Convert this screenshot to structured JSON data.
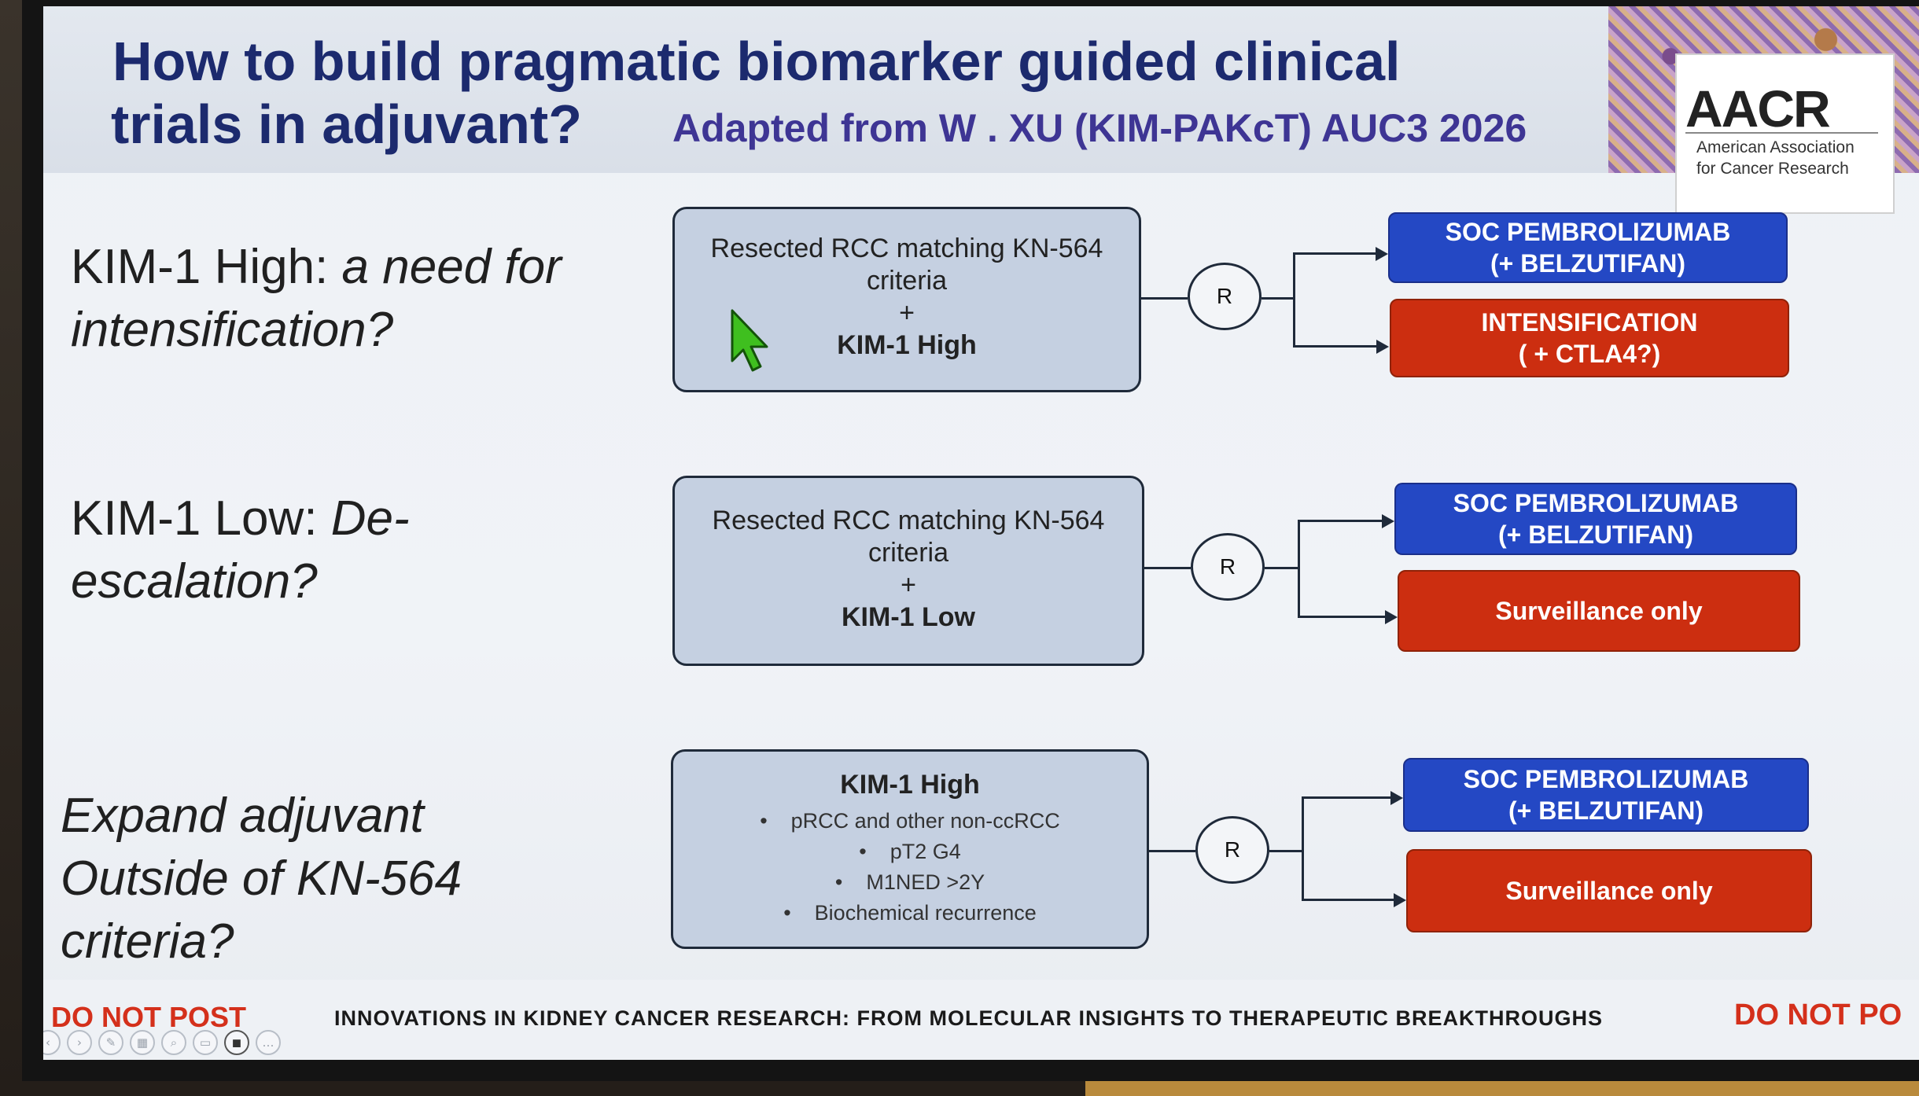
{
  "header": {
    "title_line1": "How to build pragmatic biomarker guided clinical",
    "title_line2": "trials in adjuvant?",
    "subtitle": "Adapted from W . XU (KIM-PAKcT) AUC3 2026"
  },
  "logo": {
    "text": "AACR",
    "line1": "American Association",
    "line2": "for Cancer Research"
  },
  "rows": [
    {
      "question_line1": "KIM-1 High: ",
      "question_line1_italic": "a need for",
      "question_line2": "intensification?",
      "box_line1": "Resected RCC matching KN-564",
      "box_line2": "criteria",
      "box_plus": "+",
      "box_bold": "KIM-1 High",
      "randomize": "R",
      "arm_top_line1": "SOC PEMBROLIZUMAB",
      "arm_top_line2": "(+ BELZUTIFAN)",
      "arm_bottom_line1": "INTENSIFICATION",
      "arm_bottom_line2": "( + CTLA4?)"
    },
    {
      "question_line1": "KIM-1 Low: ",
      "question_line1_italic": "De-",
      "question_line2": "escalation?",
      "box_line1": "Resected RCC matching KN-564",
      "box_line2": "criteria",
      "box_plus": "+",
      "box_bold": "KIM-1 Low",
      "randomize": "R",
      "arm_top_line1": "SOC PEMBROLIZUMAB",
      "arm_top_line2": "(+ BELZUTIFAN)",
      "arm_bottom": "Surveillance only"
    },
    {
      "question_line1": "Expand adjuvant",
      "question_line2": "Outside of KN-564",
      "question_line3": "criteria?",
      "box_bold": "KIM-1 High",
      "bullets": [
        "pRCC and other non-ccRCC",
        "pT2 G4",
        "M1NED >2Y",
        "Biochemical recurrence"
      ],
      "randomize": "R",
      "arm_top_line1": "SOC PEMBROLIZUMAB",
      "arm_top_line2": "(+ BELZUTIFAN)",
      "arm_bottom": "Surveillance only"
    }
  ],
  "footer": {
    "do_not_post_left": "DO NOT POST",
    "banner": "INNOVATIONS IN KIDNEY CANCER RESEARCH: FROM MOLECULAR INSIGHTS TO THERAPEUTIC BREAKTHROUGHS",
    "do_not_post_right": "DO NOT PO"
  },
  "controls": [
    {
      "name": "previous-slide-icon",
      "glyph": "‹"
    },
    {
      "name": "next-slide-icon",
      "glyph": "›"
    },
    {
      "name": "pen-icon",
      "glyph": "✎"
    },
    {
      "name": "slides-grid-icon",
      "glyph": "▦"
    },
    {
      "name": "zoom-icon",
      "glyph": "⌕"
    },
    {
      "name": "subtitles-icon",
      "glyph": "▭"
    },
    {
      "name": "camera-icon",
      "glyph": "◼"
    },
    {
      "name": "more-options-icon",
      "glyph": "…"
    }
  ],
  "colors": {
    "title": "#1c2a6e",
    "subtitle": "#3e3594",
    "arm_blue": "#2448c4",
    "arm_red": "#cc2e10",
    "do_not_post": "#d4301b",
    "cursor": "#3fbf1f"
  }
}
